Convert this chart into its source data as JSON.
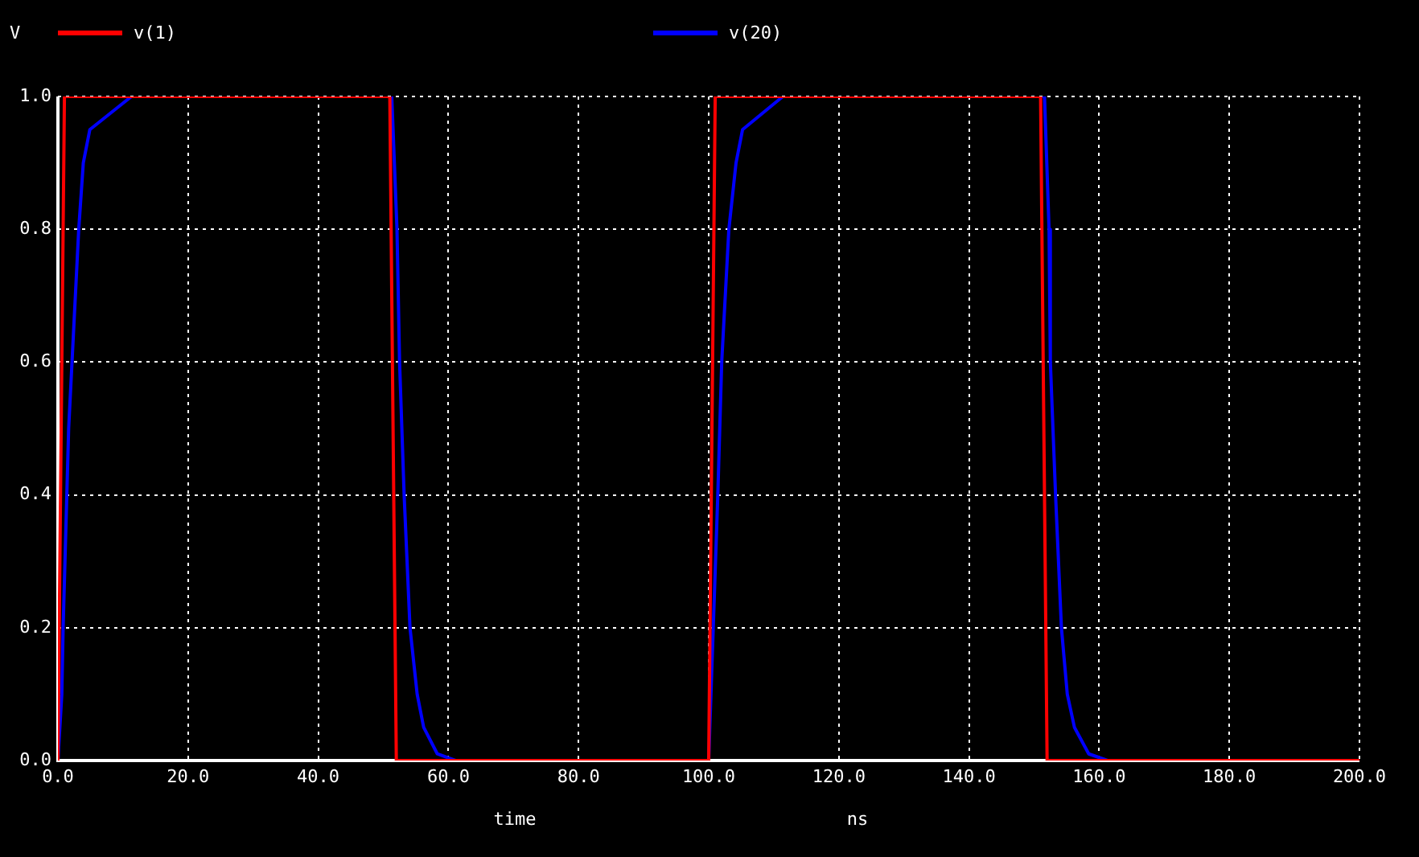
{
  "chart_data": {
    "type": "line",
    "ylabel": "V",
    "xlabel": "time",
    "annotations": [
      "ns"
    ],
    "xlim": [
      0,
      200
    ],
    "ylim": [
      0,
      1
    ],
    "xticks": [
      {
        "value": 0,
        "label": "0.0"
      },
      {
        "value": 20,
        "label": "20.0"
      },
      {
        "value": 40,
        "label": "40.0"
      },
      {
        "value": 60,
        "label": "60.0"
      },
      {
        "value": 80,
        "label": "80.0"
      },
      {
        "value": 100,
        "label": "100.0"
      },
      {
        "value": 120,
        "label": "120.0"
      },
      {
        "value": 140,
        "label": "140.0"
      },
      {
        "value": 160,
        "label": "160.0"
      },
      {
        "value": 180,
        "label": "180.0"
      },
      {
        "value": 200,
        "label": "200.0"
      }
    ],
    "yticks": [
      {
        "value": 0,
        "label": "0.0"
      },
      {
        "value": 0.2,
        "label": "0.2"
      },
      {
        "value": 0.4,
        "label": "0.4"
      },
      {
        "value": 0.6,
        "label": "0.6"
      },
      {
        "value": 0.8,
        "label": "0.8"
      },
      {
        "value": 1,
        "label": "1.0"
      }
    ],
    "grid": true,
    "legend": "top",
    "marker": "none",
    "line_style": "solid",
    "series": [
      {
        "name": "v(1)",
        "color": "#ff0000",
        "x": [
          0,
          1,
          51,
          52,
          100,
          101,
          151,
          152,
          200
        ],
        "values": [
          0,
          1,
          1,
          0,
          0,
          1,
          1,
          0,
          0
        ]
      },
      {
        "name": "v(20)",
        "color": "#0000ff",
        "x": [
          0,
          0.2,
          0.6,
          0.8,
          1.65,
          3.2,
          3.9,
          4.9,
          11.3,
          51.3,
          52.1,
          52.5,
          53.2,
          54.1,
          55.2,
          56.2,
          58.3,
          61.1,
          100,
          100.7,
          101.4,
          102,
          103.1,
          104.2,
          105.2,
          111.4,
          151.6,
          152.3,
          152.5,
          153.3,
          154.2,
          155.1,
          156.2,
          158.4,
          161.3,
          200
        ],
        "values": [
          0,
          0,
          0.1,
          0.2,
          0.5,
          0.8,
          0.9,
          0.95,
          1,
          1,
          0.8,
          0.6,
          0.4,
          0.2,
          0.1,
          0.05,
          0.01,
          0,
          0,
          0.2,
          0.4,
          0.6,
          0.8,
          0.9,
          0.95,
          1,
          1,
          0.8,
          0.6,
          0.4,
          0.2,
          0.1,
          0.05,
          0.01,
          0,
          0
        ]
      }
    ]
  }
}
